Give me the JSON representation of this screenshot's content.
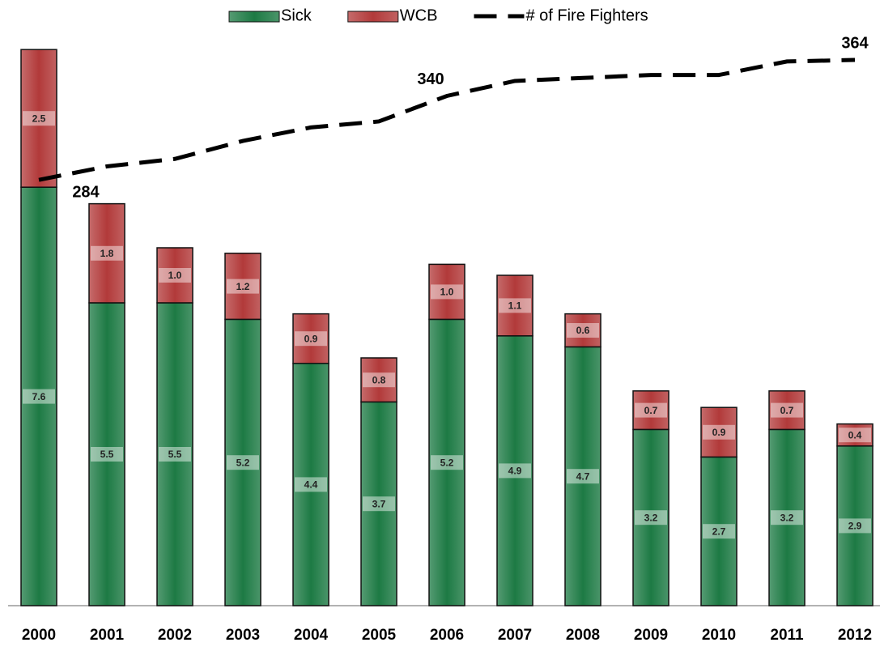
{
  "chart_data": {
    "type": "stacked-bar-line",
    "categories": [
      "2000",
      "2001",
      "2002",
      "2003",
      "2004",
      "2005",
      "2006",
      "2007",
      "2008",
      "2009",
      "2010",
      "2011",
      "2012"
    ],
    "series": [
      {
        "name": "Sick",
        "color": "#1d7a44",
        "values": [
          7.6,
          5.5,
          5.5,
          5.2,
          4.4,
          3.7,
          5.2,
          4.9,
          4.7,
          3.2,
          2.7,
          3.2,
          2.9
        ],
        "value_labels": [
          "7.6",
          "5.5",
          "5.5",
          "5.2",
          "4.4",
          "3.7",
          "5.2",
          "4.9",
          "4.7",
          "3.2",
          "2.7",
          "3.2",
          "2.9"
        ]
      },
      {
        "name": "WCB",
        "color": "#b23a3a",
        "values": [
          2.5,
          1.8,
          1.0,
          1.2,
          0.9,
          0.8,
          1.0,
          1.1,
          0.6,
          0.7,
          0.9,
          0.7,
          0.4
        ],
        "value_labels": [
          "2.5",
          "1.8",
          "1.0",
          "1.2",
          "0.9",
          "0.8",
          "1.0",
          "1.1",
          "0.6",
          "0.7",
          "0.9",
          "0.7",
          "0.4"
        ]
      },
      {
        "name": "# of Fire Fighters",
        "color": "#000000",
        "axis": "y2",
        "values": [
          284,
          293,
          298,
          310,
          319,
          323,
          340,
          350,
          352,
          354,
          354,
          363,
          364
        ],
        "value_labels": [
          "284",
          null,
          null,
          null,
          null,
          null,
          "340",
          null,
          null,
          null,
          null,
          null,
          "364"
        ]
      }
    ],
    "ylim": [
      0,
      11
    ],
    "y2lim": [
      0,
      404
    ]
  }
}
